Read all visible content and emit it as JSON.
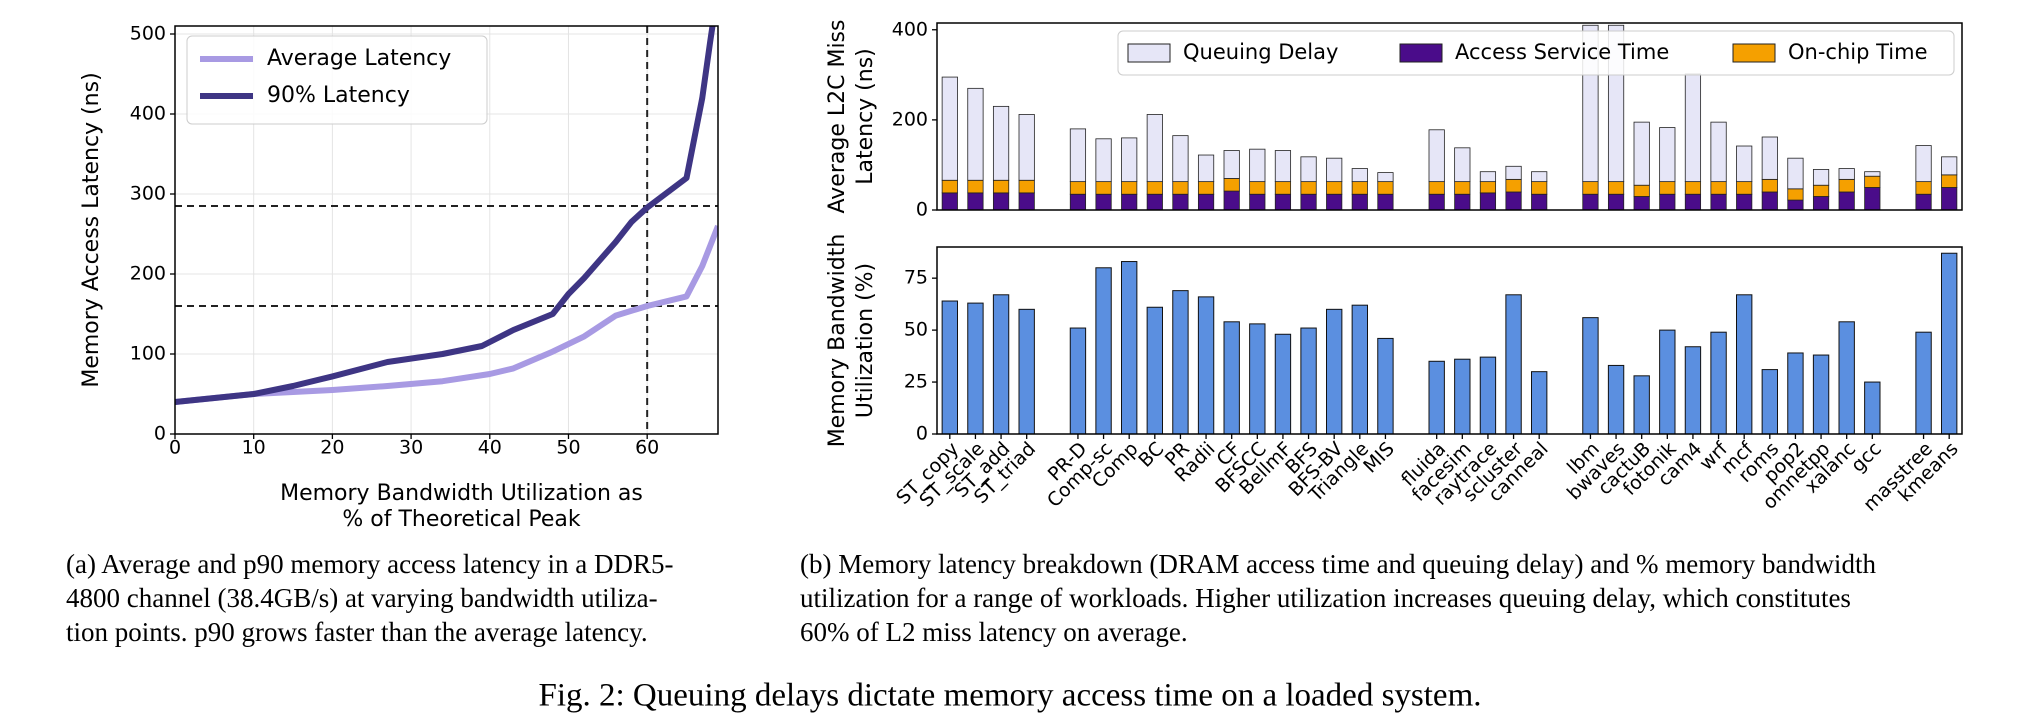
{
  "chart_data": [
    {
      "type": "line",
      "xlabel": [
        "Memory Bandwidth Utilization as",
        "% of Theoretical Peak"
      ],
      "ylabel": [
        "Memory Access Latency (ns)"
      ],
      "xlim": [
        0,
        69
      ],
      "ylim": [
        0,
        510
      ],
      "xticks": [
        0,
        10,
        20,
        30,
        40,
        50,
        60
      ],
      "yticks": [
        0,
        100,
        200,
        300,
        400,
        500
      ],
      "grid": true,
      "legend": "upper left",
      "hlines": [
        285,
        160
      ],
      "vlines": [
        60
      ],
      "series": [
        {
          "name": "Average Latency",
          "color": "#a89ae3",
          "x": [
            0,
            10,
            20,
            27,
            34,
            40,
            43,
            48,
            52,
            56,
            60,
            65,
            67,
            69
          ],
          "values": [
            40,
            50,
            55,
            60,
            66,
            75,
            82,
            103,
            122,
            148,
            160,
            172,
            210,
            260
          ]
        },
        {
          "name": "90% Latency",
          "color": "#3e3584",
          "x": [
            0,
            10,
            15,
            20,
            27,
            34,
            39,
            43,
            48,
            50,
            52,
            56,
            58,
            60,
            65,
            66,
            67,
            68,
            68.3
          ],
          "values": [
            40,
            50,
            60,
            72,
            90,
            100,
            110,
            130,
            150,
            175,
            195,
            240,
            265,
            283,
            320,
            370,
            420,
            490,
            510
          ]
        }
      ]
    },
    {
      "type": "stacked-bar",
      "ylabel": [
        "Average L2C Miss",
        "Latency (ns)"
      ],
      "ylim": [
        0,
        415
      ],
      "yticks": [
        0,
        200,
        400
      ],
      "legend": "upper right",
      "series": [
        {
          "name": "Access Service Time",
          "color": "#4a0c8a",
          "values": [
            38,
            38,
            38,
            38,
            null,
            35,
            35,
            35,
            35,
            35,
            35,
            42,
            35,
            35,
            35,
            35,
            35,
            35,
            null,
            35,
            35,
            38,
            40,
            35,
            null,
            35,
            35,
            30,
            35,
            35,
            35,
            35,
            40,
            22,
            30,
            40,
            50,
            null,
            35,
            50
          ]
        },
        {
          "name": "On-chip Time",
          "color": "#f5a000",
          "values": [
            28,
            28,
            28,
            28,
            null,
            28,
            28,
            28,
            28,
            28,
            28,
            28,
            28,
            28,
            28,
            28,
            28,
            28,
            null,
            28,
            28,
            25,
            28,
            28,
            null,
            28,
            28,
            25,
            28,
            28,
            28,
            28,
            28,
            25,
            25,
            28,
            25,
            null,
            28,
            28
          ]
        },
        {
          "name": "Queuing Delay",
          "color": "#e6e6f7",
          "values": [
            229,
            204,
            164,
            146,
            null,
            117,
            95,
            97,
            149,
            102,
            59,
            62,
            72,
            69,
            55,
            52,
            29,
            20,
            null,
            115,
            75,
            22,
            29,
            22,
            null,
            347,
            347,
            140,
            120,
            239,
            132,
            79,
            94,
            68,
            35,
            24,
            10,
            null,
            80,
            40
          ]
        }
      ]
    },
    {
      "type": "bar",
      "ylabel": [
        "Memory Bandwidth",
        "Utilization (%)"
      ],
      "ylim": [
        0,
        90
      ],
      "yticks": [
        0,
        25,
        50,
        75
      ],
      "color": "#5b8fe0",
      "categories": [
        "ST_copy",
        "ST_scale",
        "ST_add",
        "ST_triad",
        null,
        "PR-D",
        "Comp-sc",
        "Comp",
        "BC",
        "PR",
        "Radii",
        "CF",
        "BFSCC",
        "BellmF",
        "BFS",
        "BFS-BV",
        "Triangle",
        "MIS",
        null,
        "fluida",
        "facesim",
        "raytrace",
        "scluster",
        "canneal",
        null,
        "lbm",
        "bwaves",
        "cactuB",
        "fotonik",
        "cam4",
        "wrf",
        "mcf",
        "roms",
        "pop2",
        "omnetpp",
        "xalanc",
        "gcc",
        null,
        "masstree",
        "kmeans"
      ],
      "values": [
        64,
        63,
        67,
        60,
        null,
        51,
        80,
        83,
        61,
        69,
        66,
        54,
        53,
        48,
        51,
        60,
        62,
        46,
        null,
        35,
        36,
        37,
        67,
        30,
        null,
        56,
        33,
        28,
        50,
        42,
        49,
        67,
        31,
        39,
        38,
        54,
        25,
        null,
        49,
        87
      ]
    }
  ],
  "captions": {
    "a": [
      "(a) Average and p90 memory access latency in a DDR5-",
      "4800 channel (38.4GB/s) at varying bandwidth utiliza-",
      "tion points. p90 grows faster than the average latency."
    ],
    "b": [
      "(b) Memory latency breakdown (DRAM access time and queuing delay) and % memory bandwidth",
      "utilization for a range of workloads. Higher utilization increases queuing delay, which constitutes",
      "60% of L2 miss latency on average."
    ],
    "figure": "Fig. 2: Queuing delays dictate memory access time on a loaded system."
  }
}
